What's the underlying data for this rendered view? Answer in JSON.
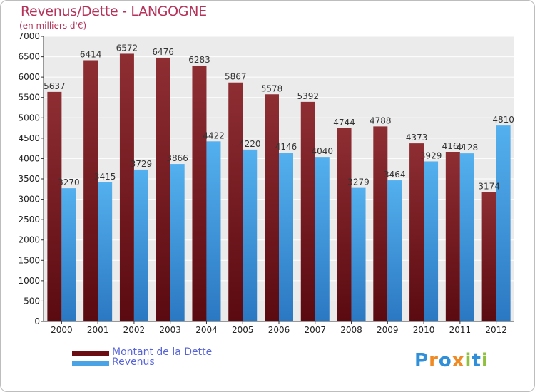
{
  "title": "Revenus/Dette - LANGOGNE",
  "subtitle": "(en milliers d'€)",
  "legend": {
    "dette": "Montant de la Dette",
    "revenus": "Revenus"
  },
  "logo": {
    "text": "Proxiti",
    "letters": [
      "P",
      "r",
      "o",
      "x",
      "i",
      "t",
      "i"
    ],
    "colors": [
      "#2f8fd8",
      "#f08a24",
      "#2f8fd8",
      "#f08a24",
      "#8fc13c",
      "#2f8fd8",
      "#8fc13c"
    ]
  },
  "colors": {
    "dette": "#7a1a1f",
    "revenus": "#4aa3e4",
    "title": "#b5325a",
    "plot_bg": "#ebebeb"
  },
  "chart_data": {
    "type": "bar",
    "title": "Revenus/Dette - LANGOGNE",
    "ylabel": "(en milliers d'€)",
    "xlabel": "",
    "ylim": [
      0,
      7000
    ],
    "yticks": [
      0,
      500,
      1000,
      1500,
      2000,
      2500,
      3000,
      3500,
      4000,
      4500,
      5000,
      5500,
      6000,
      6500,
      7000
    ],
    "grid": true,
    "legend_position": "bottom-left",
    "categories": [
      "2000",
      "2001",
      "2002",
      "2003",
      "2004",
      "2005",
      "2006",
      "2007",
      "2008",
      "2009",
      "2010",
      "2011",
      "2012"
    ],
    "series": [
      {
        "name": "Montant de la Dette",
        "values": [
          5637,
          6414,
          6572,
          6476,
          6283,
          5867,
          5578,
          5392,
          4744,
          4788,
          4373,
          4165,
          3174
        ]
      },
      {
        "name": "Revenus",
        "values": [
          3270,
          3415,
          3729,
          3866,
          4422,
          4220,
          4146,
          4040,
          3279,
          3464,
          3929,
          4128,
          4810
        ]
      }
    ]
  }
}
